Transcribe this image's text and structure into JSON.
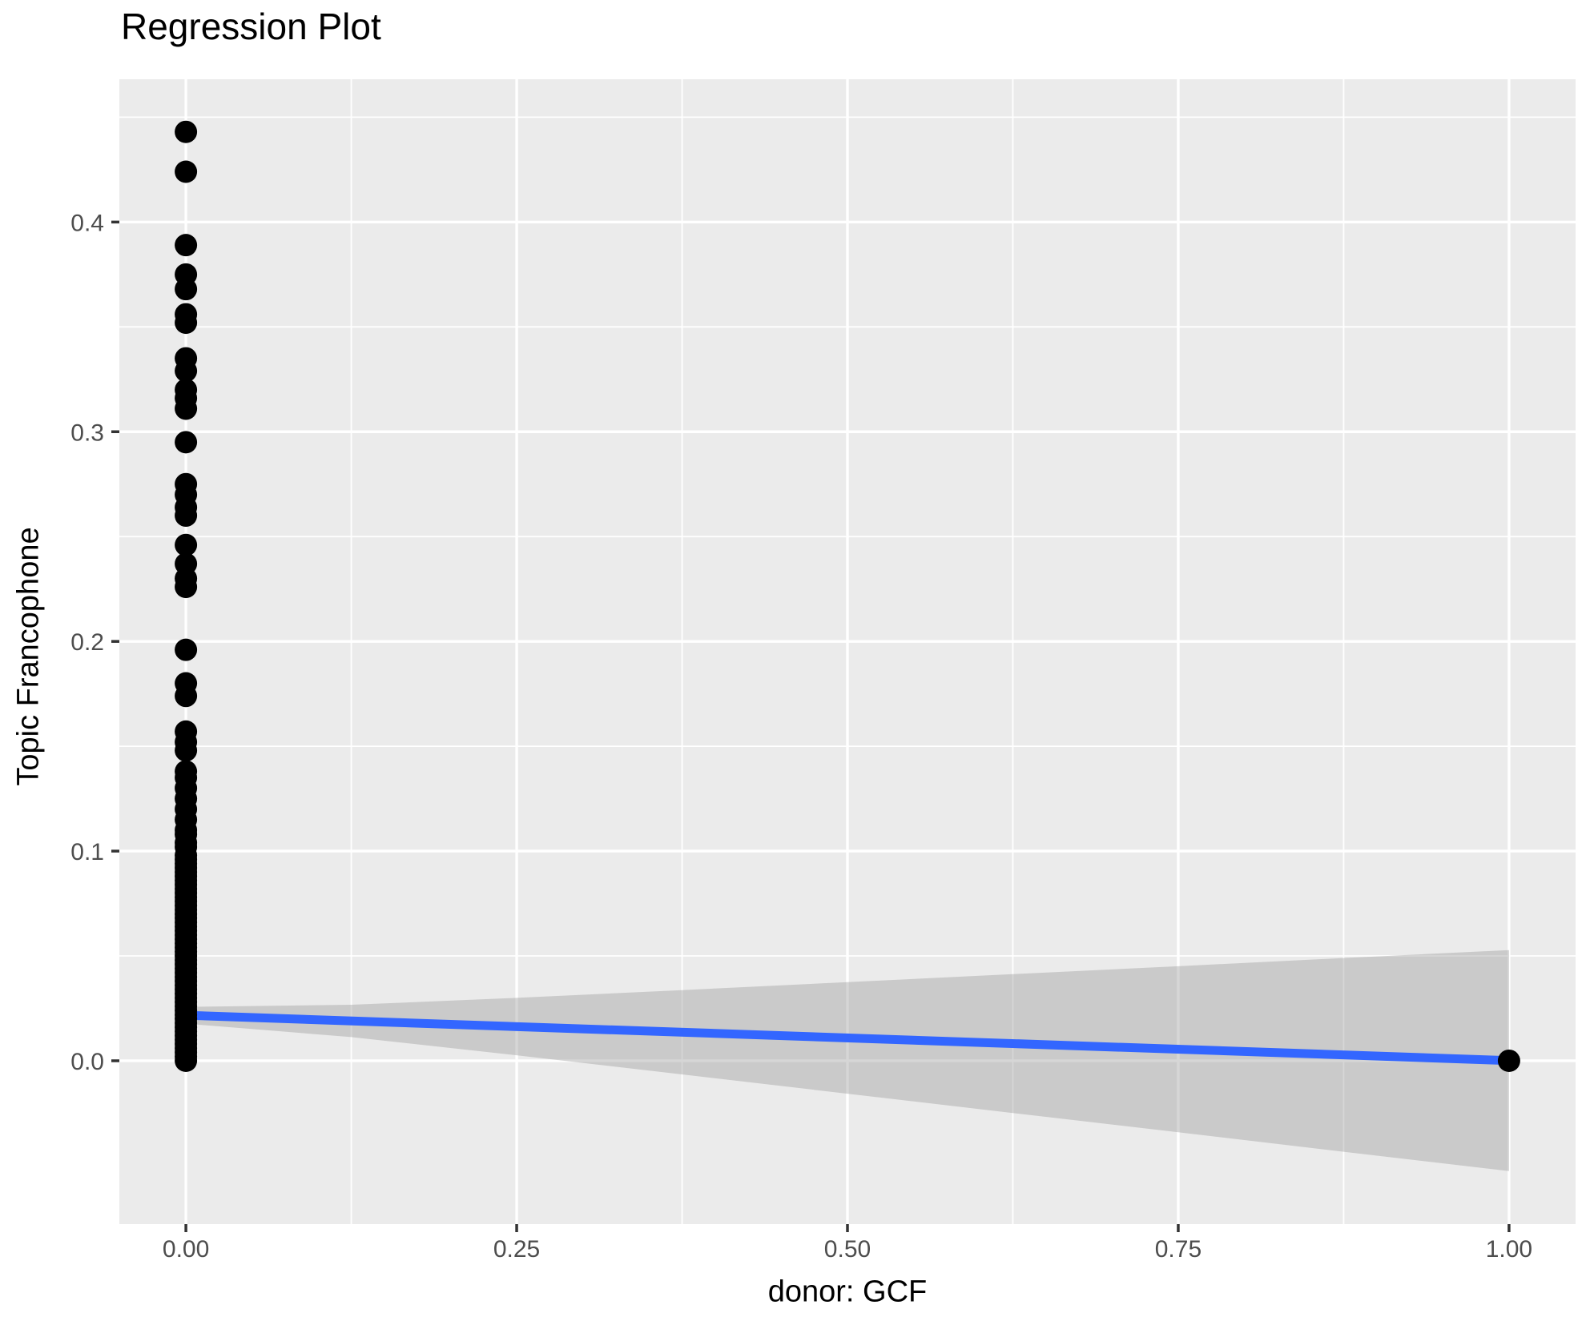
{
  "chart_data": {
    "type": "scatter",
    "title": "Regression Plot",
    "xlabel": "donor: GCF",
    "ylabel": "Topic Francophone",
    "xlim": [
      -0.0503,
      1.0503
    ],
    "ylim": [
      -0.0779,
      0.4681
    ],
    "grid": true,
    "legend_position": "none",
    "x_ticks": [
      {
        "value": 0.0,
        "label": "0.00"
      },
      {
        "value": 0.25,
        "label": "0.25"
      },
      {
        "value": 0.5,
        "label": "0.50"
      },
      {
        "value": 0.75,
        "label": "0.75"
      },
      {
        "value": 1.0,
        "label": "1.00"
      }
    ],
    "y_ticks": [
      {
        "value": 0.0,
        "label": "0.0"
      },
      {
        "value": 0.1,
        "label": "0.1"
      },
      {
        "value": 0.2,
        "label": "0.2"
      },
      {
        "value": 0.3,
        "label": "0.3"
      },
      {
        "value": 0.4,
        "label": "0.4"
      }
    ],
    "x_minor": [
      0.125,
      0.375,
      0.625,
      0.875
    ],
    "y_minor": [
      0.05,
      0.15,
      0.25,
      0.35,
      0.45
    ],
    "points": {
      "x_zero_cluster_y": [
        0.443,
        0.424,
        0.389,
        0.375,
        0.368,
        0.356,
        0.352,
        0.335,
        0.329,
        0.32,
        0.316,
        0.311,
        0.295,
        0.275,
        0.27,
        0.264,
        0.26,
        0.246,
        0.237,
        0.23,
        0.226,
        0.196,
        0.18,
        0.174,
        0.157,
        0.152,
        0.148,
        0.138,
        0.135,
        0.13,
        0.125,
        0.12,
        0.115,
        0.11,
        0.108,
        0.104,
        0.102,
        0.098,
        0.096,
        0.094,
        0.092,
        0.09,
        0.088,
        0.086,
        0.084,
        0.082,
        0.08,
        0.078,
        0.076,
        0.074,
        0.072,
        0.07,
        0.068,
        0.066,
        0.064,
        0.062,
        0.06,
        0.058,
        0.056,
        0.054,
        0.052,
        0.05,
        0.048,
        0.046,
        0.044,
        0.042,
        0.04,
        0.038,
        0.036,
        0.034,
        0.032,
        0.03,
        0.028,
        0.026,
        0.024,
        0.022,
        0.02,
        0.018,
        0.016,
        0.014,
        0.012,
        0.01,
        0.008,
        0.006,
        0.004,
        0.002,
        0.0
      ],
      "x_one_y": [
        0.0
      ]
    },
    "regression_line": {
      "x": [
        0.0,
        1.0
      ],
      "y": [
        0.0217,
        0.0001
      ]
    },
    "confidence_band": {
      "x": [
        0.0,
        0.125,
        0.25,
        0.375,
        0.5,
        0.625,
        0.75,
        0.875,
        1.0
      ],
      "upper": [
        0.0257,
        0.0267,
        0.03,
        0.0337,
        0.0375,
        0.0413,
        0.0451,
        0.049,
        0.0528
      ],
      "lower": [
        0.0177,
        0.0113,
        0.0026,
        -0.0065,
        -0.0157,
        -0.0249,
        -0.0341,
        -0.0434,
        -0.0526
      ]
    },
    "colors": {
      "panel_background": "#EBEBEB",
      "gridline": "#FFFFFF",
      "point": "#000000",
      "regression_line": "#3366FF",
      "band": "#999999",
      "band_opacity": 0.4,
      "tick_label": "#4D4D4D",
      "tick_mark": "#333333",
      "title": "#000000"
    }
  }
}
